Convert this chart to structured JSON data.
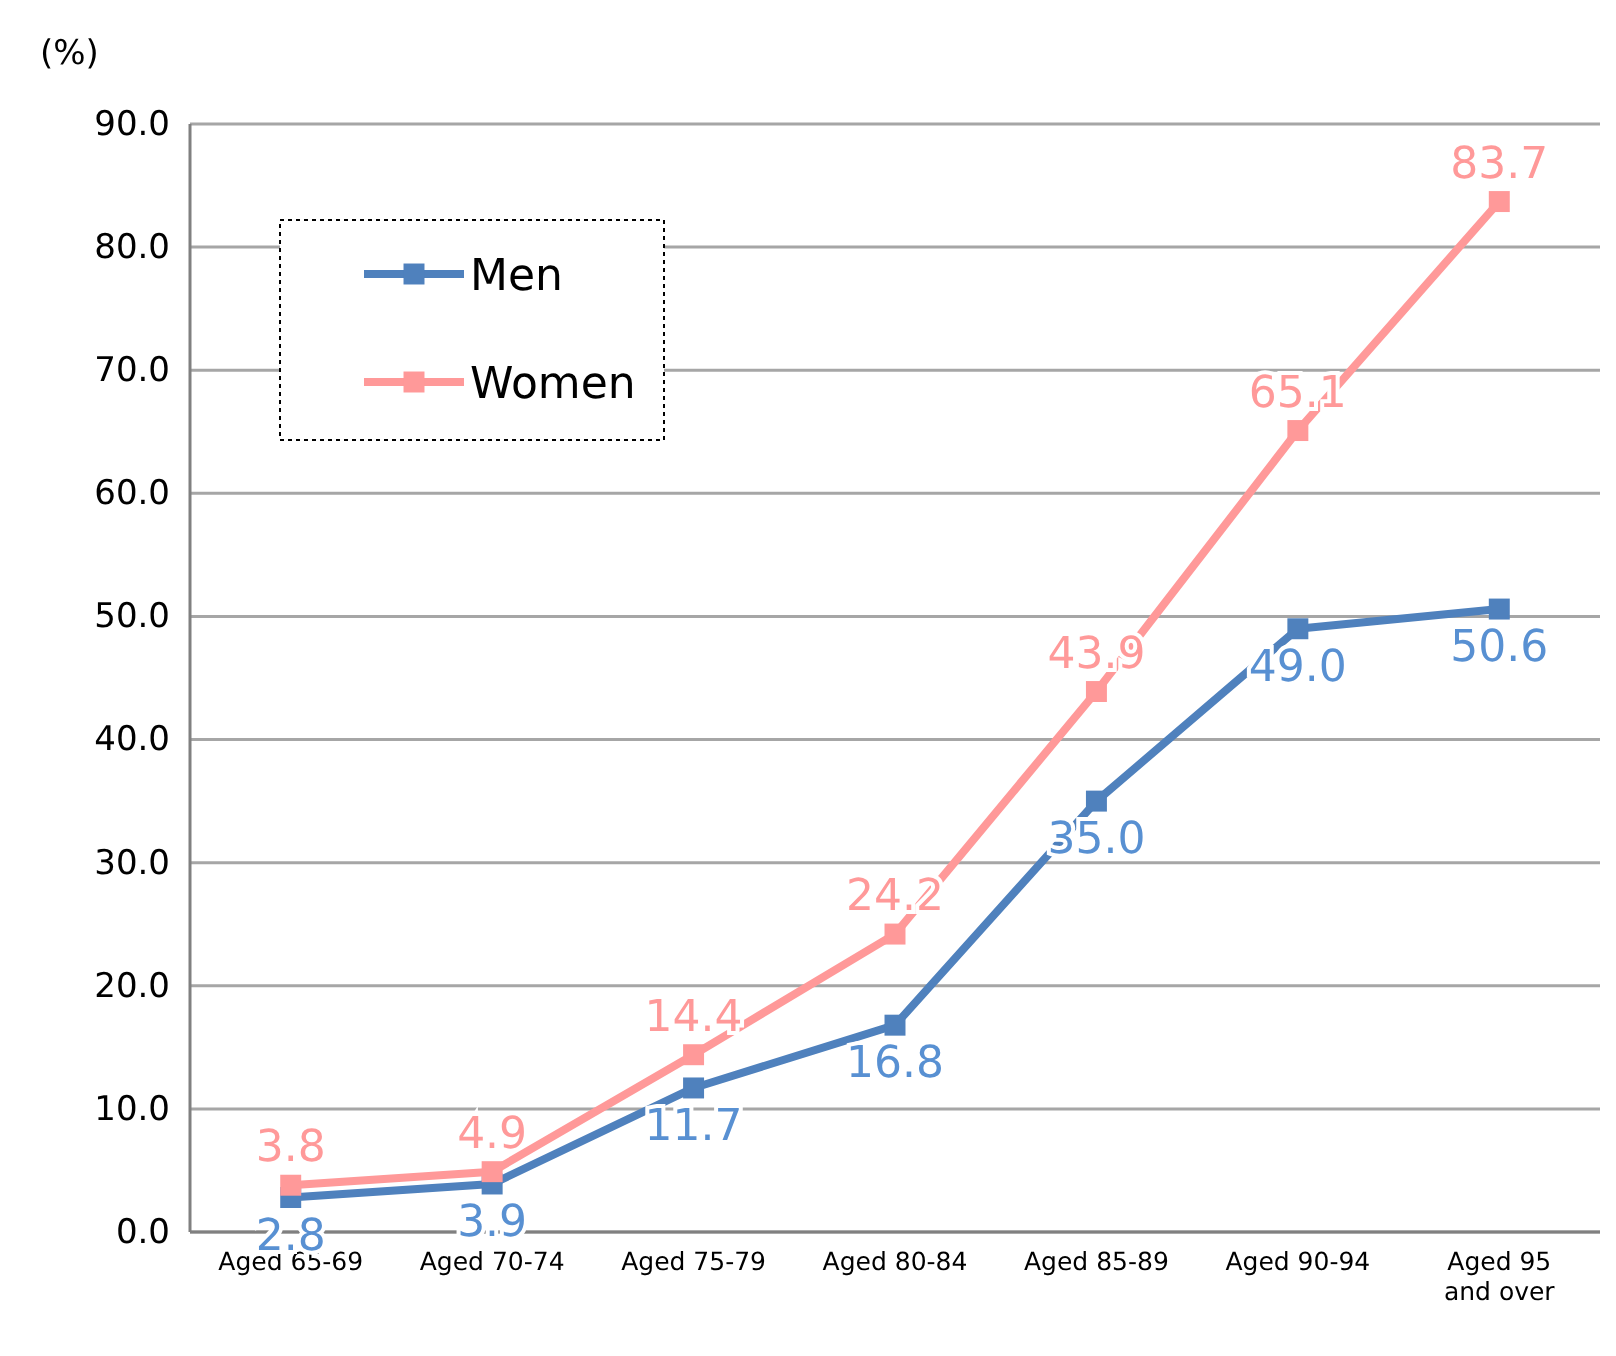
{
  "chart_data": {
    "type": "line",
    "ylabel": "(%)",
    "categories": [
      "Aged 65-69",
      "Aged 70-74",
      "Aged 75-79",
      "Aged 80-84",
      "Aged 85-89",
      "Aged 90-94",
      "Aged 95 and over"
    ],
    "series": [
      {
        "name": "Men",
        "color": "#4f81bd",
        "values": [
          2.8,
          3.9,
          11.7,
          16.8,
          35.0,
          49.0,
          50.6
        ],
        "value_labels": [
          "2.8",
          "3.9",
          "11.7",
          "16.8",
          "35.0",
          "49.0",
          "50.6"
        ]
      },
      {
        "name": "Women",
        "color": "#ff9999",
        "values": [
          3.8,
          4.9,
          14.4,
          24.2,
          43.9,
          65.1,
          83.7
        ],
        "value_labels": [
          "3.8",
          "4.9",
          "14.4",
          "24.2",
          "43.9",
          "65.1",
          "83.7"
        ]
      }
    ],
    "ylim": [
      0,
      90
    ],
    "yticks": [
      {
        "value": 0,
        "label": "0.0"
      },
      {
        "value": 10,
        "label": "10.0"
      },
      {
        "value": 20,
        "label": "20.0"
      },
      {
        "value": 30,
        "label": "30.0"
      },
      {
        "value": 40,
        "label": "40.0"
      },
      {
        "value": 50,
        "label": "50.0"
      },
      {
        "value": 60,
        "label": "60.0"
      },
      {
        "value": 70,
        "label": "70.0"
      },
      {
        "value": 80,
        "label": "80.0"
      },
      {
        "value": 90,
        "label": "90.0"
      }
    ],
    "grid": "y",
    "legend": "top left",
    "marker": "square",
    "line_style": "solid"
  }
}
